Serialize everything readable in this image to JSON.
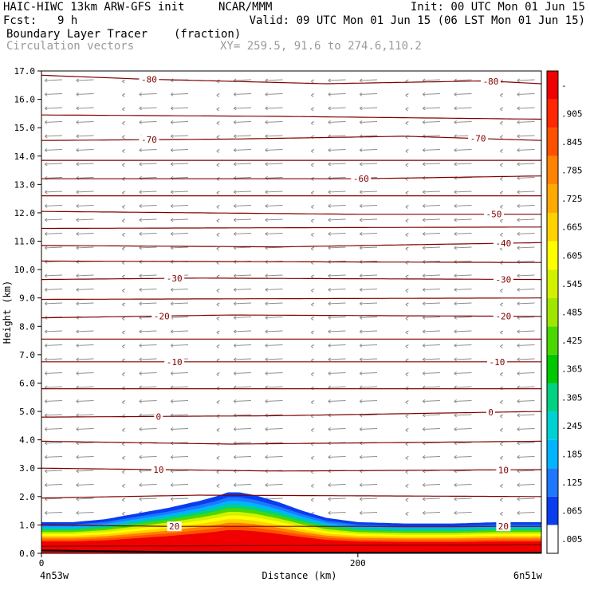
{
  "header": {
    "model_line": "HAIC-HIWC 13km ARW-GFS init",
    "org": "NCAR/MMM",
    "init": "Init: 00 UTC Mon 01 Jun 15",
    "fcst_label": "Fcst:",
    "fcst_value": "9 h",
    "valid": "Valid: 09 UTC Mon 01 Jun 15 (06 LST Mon 01 Jun 15)",
    "field_name": "Boundary Layer Tracer",
    "field_units": "(fraction)",
    "vectors_label": "Circulation vectors",
    "xy_range": "XY= 259.5, 91.6 to 274.6,110.2"
  },
  "chart_data": {
    "type": "heatmap",
    "xlabel": "Distance (km)",
    "ylabel": "Height (km)",
    "xlim": [
      0,
      316
    ],
    "ylim": [
      0,
      17
    ],
    "x_ticks": [
      {
        "value": 0,
        "label": "0"
      },
      {
        "value": 200,
        "label": "200"
      }
    ],
    "x_endpoint_labels": {
      "left": "4n53w",
      "right": "6n51w"
    },
    "y_ticks": [
      "0.0",
      "1.0",
      "2.0",
      "3.0",
      "4.0",
      "5.0",
      "6.0",
      "7.0",
      "8.0",
      "9.0",
      "10.0",
      "11.0",
      "12.0",
      "13.0",
      "14.0",
      "15.0",
      "16.0",
      "17.0"
    ],
    "colorbar": {
      "labels": [
        ".005",
        ".065",
        ".125",
        ".185",
        ".245",
        ".305",
        ".365",
        ".425",
        ".485",
        ".545",
        ".605",
        ".665",
        ".725",
        ".785",
        ".845",
        ".905",
        "-"
      ],
      "colors": [
        "#ffffff",
        "#0a3cf0",
        "#1e78ff",
        "#00b4ff",
        "#00d2d2",
        "#00d282",
        "#00c800",
        "#4bd700",
        "#a0e600",
        "#d2f000",
        "#ffff00",
        "#ffd200",
        "#ffaa00",
        "#ff8200",
        "#ff5000",
        "#ff2800",
        "#f00000"
      ]
    },
    "tracer_top_km": [
      [
        0,
        1.1
      ],
      [
        20,
        1.1
      ],
      [
        40,
        1.2
      ],
      [
        60,
        1.4
      ],
      [
        80,
        1.6
      ],
      [
        100,
        1.85
      ],
      [
        110,
        2.0
      ],
      [
        118,
        2.15
      ],
      [
        125,
        2.15
      ],
      [
        135,
        2.05
      ],
      [
        150,
        1.8
      ],
      [
        165,
        1.5
      ],
      [
        180,
        1.25
      ],
      [
        200,
        1.1
      ],
      [
        230,
        1.05
      ],
      [
        260,
        1.05
      ],
      [
        290,
        1.1
      ],
      [
        316,
        1.1
      ]
    ],
    "temperature_contours": [
      {
        "label": "-80",
        "points": [
          [
            0,
            16.85
          ],
          [
            60,
            16.72
          ],
          [
            180,
            16.55
          ],
          [
            280,
            16.65
          ],
          [
            316,
            16.55
          ]
        ],
        "label_x": [
          68,
          284
        ]
      },
      {
        "label": "",
        "points": [
          [
            0,
            15.45
          ],
          [
            150,
            15.4
          ],
          [
            316,
            15.3
          ]
        ],
        "label_x": []
      },
      {
        "label": "-70",
        "points": [
          [
            0,
            14.55
          ],
          [
            120,
            14.6
          ],
          [
            230,
            14.7
          ],
          [
            316,
            14.55
          ]
        ],
        "label_x": [
          68,
          276
        ]
      },
      {
        "label": "",
        "points": [
          [
            0,
            13.85
          ],
          [
            316,
            13.85
          ]
        ],
        "label_x": []
      },
      {
        "label": "-60",
        "points": [
          [
            0,
            13.2
          ],
          [
            200,
            13.2
          ],
          [
            316,
            13.3
          ]
        ],
        "label_x": [
          202
        ]
      },
      {
        "label": "",
        "points": [
          [
            0,
            12.6
          ],
          [
            316,
            12.6
          ]
        ],
        "label_x": []
      },
      {
        "label": "-50",
        "points": [
          [
            0,
            12.05
          ],
          [
            200,
            11.95
          ],
          [
            316,
            11.95
          ]
        ],
        "label_x": [
          286
        ]
      },
      {
        "label": "",
        "points": [
          [
            0,
            11.45
          ],
          [
            316,
            11.5
          ]
        ],
        "label_x": []
      },
      {
        "label": "-40",
        "points": [
          [
            0,
            10.85
          ],
          [
            150,
            10.8
          ],
          [
            316,
            10.95
          ]
        ],
        "label_x": [
          292
        ]
      },
      {
        "label": "",
        "points": [
          [
            0,
            10.3
          ],
          [
            316,
            10.25
          ]
        ],
        "label_x": []
      },
      {
        "label": "-30",
        "points": [
          [
            0,
            9.65
          ],
          [
            100,
            9.7
          ],
          [
            316,
            9.65
          ]
        ],
        "label_x": [
          84,
          292
        ]
      },
      {
        "label": "",
        "points": [
          [
            0,
            8.95
          ],
          [
            316,
            9.0
          ]
        ],
        "label_x": []
      },
      {
        "label": "-20",
        "points": [
          [
            0,
            8.3
          ],
          [
            120,
            8.4
          ],
          [
            316,
            8.35
          ]
        ],
        "label_x": [
          76,
          292
        ]
      },
      {
        "label": "",
        "points": [
          [
            0,
            7.55
          ],
          [
            316,
            7.55
          ]
        ],
        "label_x": []
      },
      {
        "label": "-10",
        "points": [
          [
            0,
            6.75
          ],
          [
            150,
            6.75
          ],
          [
            316,
            6.75
          ]
        ],
        "label_x": [
          84,
          288
        ]
      },
      {
        "label": "",
        "points": [
          [
            0,
            5.8
          ],
          [
            316,
            5.8
          ]
        ],
        "label_x": []
      },
      {
        "label": "0",
        "points": [
          [
            0,
            4.8
          ],
          [
            150,
            4.85
          ],
          [
            316,
            5.0
          ]
        ],
        "label_x": [
          74,
          284
        ]
      },
      {
        "label": "",
        "points": [
          [
            0,
            3.95
          ],
          [
            120,
            3.85
          ],
          [
            316,
            3.95
          ]
        ],
        "label_x": []
      },
      {
        "label": "10",
        "points": [
          [
            0,
            3.0
          ],
          [
            150,
            2.9
          ],
          [
            316,
            2.95
          ]
        ],
        "label_x": [
          74,
          292
        ]
      },
      {
        "label": "",
        "points": [
          [
            0,
            1.95
          ],
          [
            100,
            2.05
          ],
          [
            316,
            2.0
          ]
        ],
        "label_x": []
      },
      {
        "label": "20",
        "points": [
          [
            0,
            1.0
          ],
          [
            80,
            0.95
          ],
          [
            180,
            0.95
          ],
          [
            316,
            0.95
          ]
        ],
        "label_x": [
          84,
          292
        ]
      },
      {
        "label": "",
        "points": [
          [
            0,
            0.25
          ],
          [
            316,
            0.3
          ]
        ],
        "label_x": []
      }
    ],
    "terrain_km": [
      [
        0,
        0.1
      ],
      [
        80,
        0.05
      ],
      [
        200,
        0.02
      ],
      [
        316,
        0.02
      ]
    ]
  }
}
